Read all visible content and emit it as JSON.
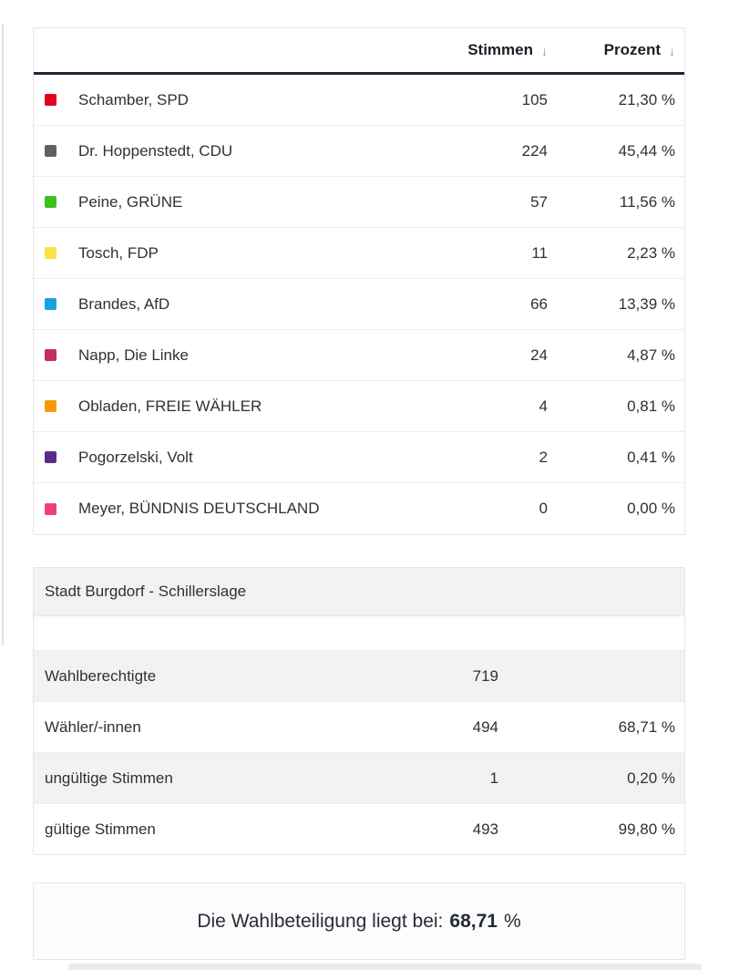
{
  "results_table": {
    "columns": [
      {
        "label": "Stimmen",
        "sort_icon": "↓"
      },
      {
        "label": "Prozent",
        "sort_icon": "↓"
      }
    ],
    "rows": [
      {
        "color": "#e2001f",
        "name": "Schamber, SPD",
        "votes": "105",
        "percent": "21,30 %"
      },
      {
        "color": "#606060",
        "name": "Dr. Hoppenstedt, CDU",
        "votes": "224",
        "percent": "45,44 %"
      },
      {
        "color": "#3ec01e",
        "name": "Peine, GRÜNE",
        "votes": "57",
        "percent": "11,56 %"
      },
      {
        "color": "#f9e347",
        "name": "Tosch, FDP",
        "votes": "11",
        "percent": "2,23 %"
      },
      {
        "color": "#19a1e6",
        "name": "Brandes, AfD",
        "votes": "66",
        "percent": "13,39 %"
      },
      {
        "color": "#c62c60",
        "name": "Napp, Die Linke",
        "votes": "24",
        "percent": "4,87 %"
      },
      {
        "color": "#f69a0b",
        "name": "Obladen, FREIE WÄHLER",
        "votes": "4",
        "percent": "0,81 %"
      },
      {
        "color": "#5a2d87",
        "name": "Pogorzelski, Volt",
        "votes": "2",
        "percent": "0,41 %"
      },
      {
        "color": "#f23f7c",
        "name": "Meyer, BÜNDNIS DEUTSCHLAND",
        "votes": "0",
        "percent": "0,00 %"
      }
    ]
  },
  "district_panel": {
    "title": "Stadt Burgdorf - Schillerslage",
    "rows": [
      {
        "label": "Wahlberechtigte",
        "value": "719",
        "percent": ""
      },
      {
        "label": "Wähler/-innen",
        "value": "494",
        "percent": "68,71 %"
      },
      {
        "label": "ungültige Stimmen",
        "value": "1",
        "percent": "0,20 %"
      },
      {
        "label": "gültige Stimmen",
        "value": "493",
        "percent": "99,80 %"
      }
    ]
  },
  "turnout_banner": {
    "prefix": "Die Wahlbeteiligung liegt bei:",
    "value": "68,71",
    "suffix": "%"
  }
}
